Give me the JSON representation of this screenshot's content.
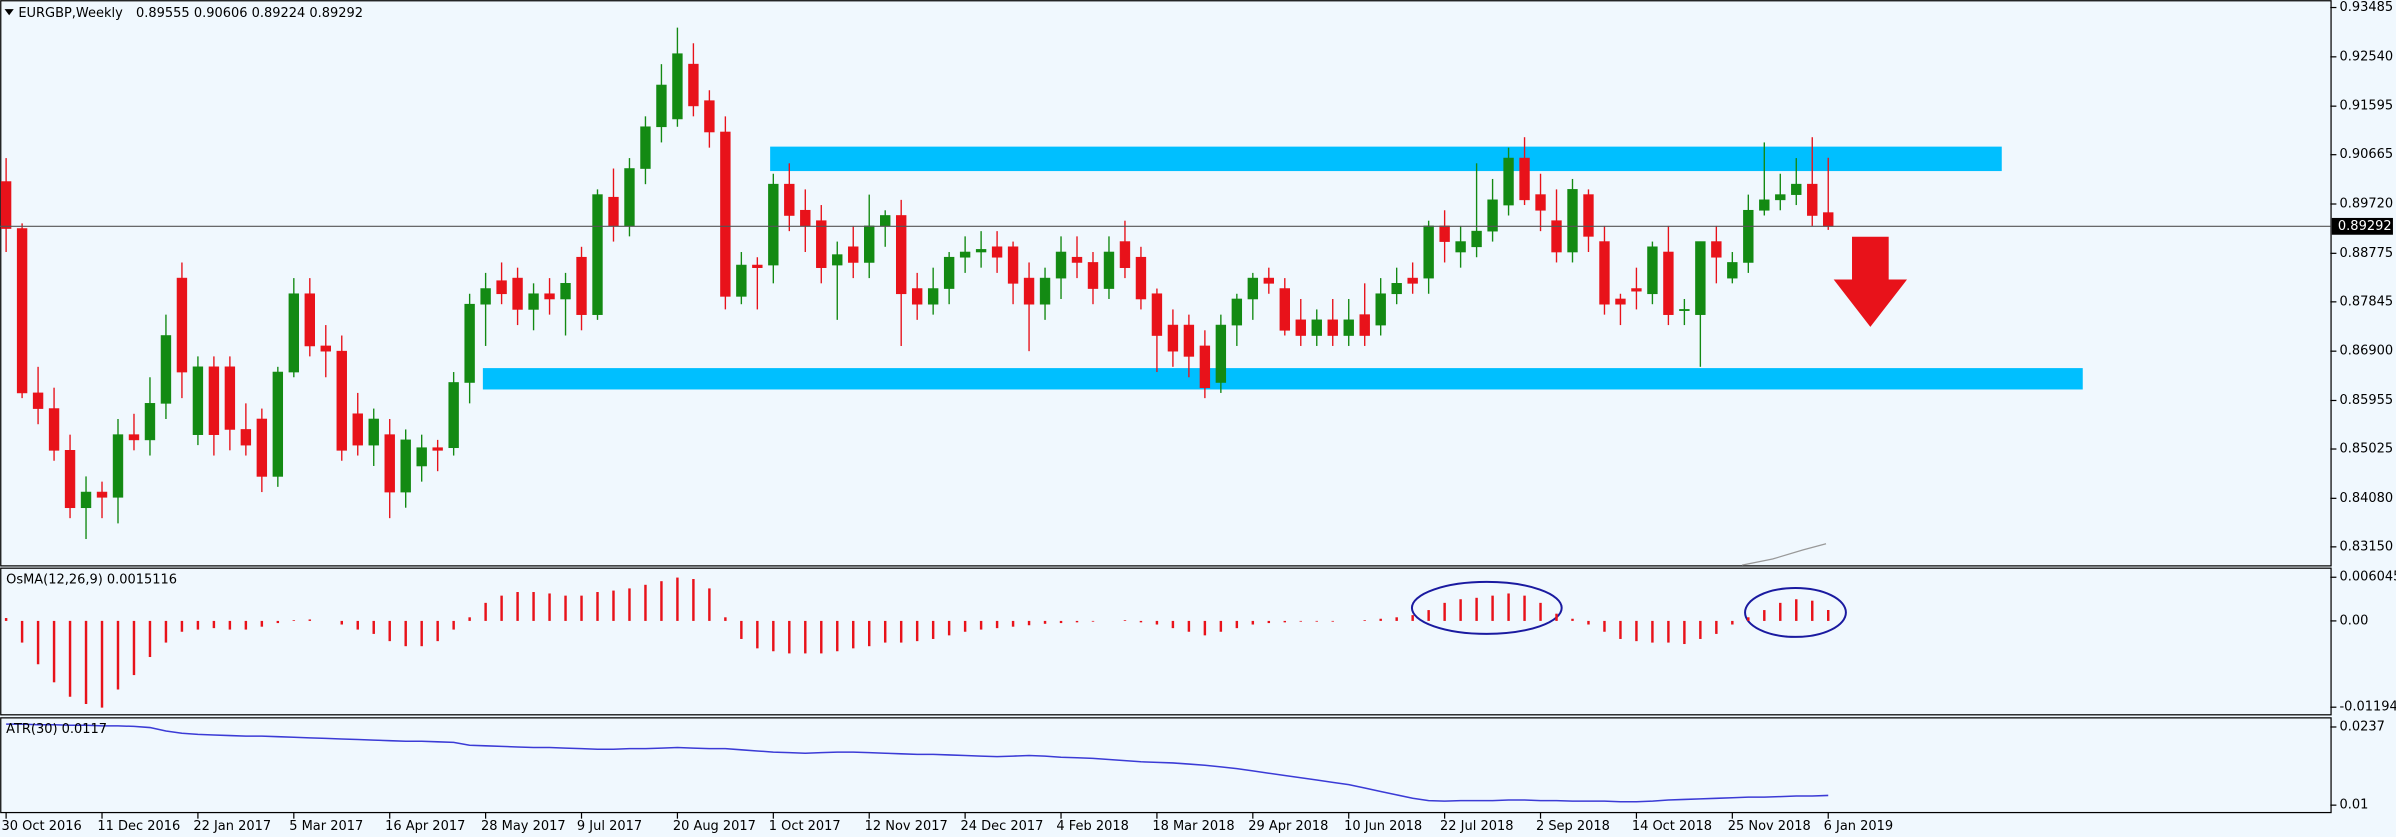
{
  "chart_data": [
    {
      "type": "candlestick",
      "title": "EURGBP,Weekly",
      "x": [
        "30 Oct 2016",
        null,
        null,
        null,
        null,
        null,
        "11 Dec 2016",
        null,
        null,
        null,
        null,
        null,
        "22 Jan 2017",
        null,
        null,
        null,
        null,
        null,
        "5 Mar 2017",
        null,
        null,
        null,
        null,
        null,
        "16 Apr 2017",
        null,
        null,
        null,
        null,
        null,
        "28 May 2017",
        null,
        null,
        null,
        null,
        null,
        "9 Jul 2017",
        null,
        null,
        null,
        null,
        null,
        "20 Aug 2017",
        null,
        null,
        null,
        null,
        null,
        "1 Oct 2017",
        null,
        null,
        null,
        null,
        null,
        "12 Nov 2017",
        null,
        null,
        null,
        null,
        null,
        "24 Dec 2017",
        null,
        null,
        null,
        null,
        null,
        "4 Feb 2018",
        null,
        null,
        null,
        null,
        null,
        "18 Mar 2018",
        null,
        null,
        null,
        null,
        null,
        "29 Apr 2018",
        null,
        null,
        null,
        null,
        null,
        "10 Jun 2018",
        null,
        null,
        null,
        null,
        null,
        "22 Jul 2018",
        null,
        null,
        null,
        null,
        null,
        "2 Sep 2018",
        null,
        null,
        null,
        null,
        null,
        "14 Oct 2018",
        null,
        null,
        null,
        null,
        null,
        "25 Nov 2018",
        null,
        null,
        null,
        null,
        null,
        "6 Jan 2019"
      ],
      "open": [
        0.9015,
        0.8925,
        0.861,
        0.858,
        0.85,
        0.839,
        0.842,
        0.841,
        0.853,
        0.852,
        0.859,
        0.883,
        0.853,
        0.866,
        0.866,
        0.854,
        0.856,
        0.845,
        0.865,
        0.88,
        0.87,
        0.869,
        0.857,
        0.851,
        0.853,
        0.842,
        0.847,
        0.8505,
        0.8505,
        0.863,
        0.878,
        0.8825,
        0.883,
        0.877,
        0.88,
        0.879,
        0.887,
        0.876,
        0.8985,
        0.893,
        0.904,
        0.912,
        0.9135,
        0.924,
        0.917,
        0.911,
        0.8795,
        0.8855,
        0.8855,
        0.901,
        0.896,
        0.894,
        0.8855,
        0.889,
        0.886,
        0.893,
        0.895,
        0.881,
        0.878,
        0.881,
        0.887,
        0.888,
        0.889,
        0.889,
        0.883,
        0.878,
        0.883,
        0.887,
        0.886,
        0.881,
        0.89,
        0.887,
        0.88,
        0.874,
        0.874,
        0.87,
        0.863,
        0.874,
        0.879,
        0.883,
        0.881,
        0.875,
        0.872,
        0.875,
        0.872,
        0.876,
        0.874,
        0.88,
        0.883,
        0.883,
        0.893,
        0.888,
        0.889,
        0.892,
        0.897,
        0.906,
        0.899,
        0.894,
        0.888,
        0.899,
        0.89,
        0.879,
        0.881,
        0.88,
        0.888,
        0.877,
        0.876,
        0.89,
        0.883,
        0.886,
        0.896,
        0.898,
        0.899,
        0.901,
        0.89555
      ],
      "high": [
        0.906,
        0.8935,
        0.866,
        0.862,
        0.853,
        0.845,
        0.844,
        0.856,
        0.857,
        0.864,
        0.876,
        0.886,
        0.868,
        0.868,
        0.868,
        0.859,
        0.858,
        0.866,
        0.883,
        0.883,
        0.874,
        0.872,
        0.861,
        0.858,
        0.856,
        0.854,
        0.853,
        0.852,
        0.865,
        0.88,
        0.884,
        0.886,
        0.885,
        0.882,
        0.883,
        0.884,
        0.889,
        0.9,
        0.904,
        0.906,
        0.914,
        0.924,
        0.931,
        0.928,
        0.919,
        0.914,
        0.888,
        0.887,
        0.903,
        0.905,
        0.9,
        0.897,
        0.89,
        0.893,
        0.899,
        0.896,
        0.898,
        0.884,
        0.885,
        0.888,
        0.891,
        0.892,
        0.892,
        0.89,
        0.886,
        0.885,
        0.891,
        0.891,
        0.888,
        0.891,
        0.894,
        0.889,
        0.881,
        0.877,
        0.876,
        0.873,
        0.876,
        0.88,
        0.884,
        0.885,
        0.883,
        0.879,
        0.877,
        0.879,
        0.879,
        0.882,
        0.883,
        0.885,
        0.886,
        0.894,
        0.896,
        0.893,
        0.905,
        0.902,
        0.908,
        0.91,
        0.903,
        0.9,
        0.902,
        0.9,
        0.893,
        0.88,
        0.885,
        0.89,
        0.893,
        0.879,
        0.89,
        0.893,
        0.888,
        0.899,
        0.909,
        0.903,
        0.906,
        0.91,
        0.90606
      ],
      "low": [
        0.888,
        0.86,
        0.855,
        0.848,
        0.837,
        0.833,
        0.837,
        0.836,
        0.85,
        0.849,
        0.856,
        0.86,
        0.851,
        0.849,
        0.85,
        0.849,
        0.842,
        0.843,
        0.864,
        0.868,
        0.864,
        0.848,
        0.849,
        0.847,
        0.837,
        0.839,
        0.844,
        0.846,
        0.849,
        0.859,
        0.87,
        0.878,
        0.874,
        0.873,
        0.876,
        0.872,
        0.873,
        0.875,
        0.89,
        0.891,
        0.901,
        0.909,
        0.912,
        0.914,
        0.908,
        0.877,
        0.878,
        0.877,
        0.882,
        0.892,
        0.888,
        0.882,
        0.875,
        0.883,
        0.883,
        0.889,
        0.87,
        0.875,
        0.876,
        0.878,
        0.884,
        0.885,
        0.884,
        0.878,
        0.869,
        0.875,
        0.879,
        0.883,
        0.878,
        0.879,
        0.883,
        0.877,
        0.865,
        0.866,
        0.864,
        0.86,
        0.861,
        0.87,
        0.875,
        0.88,
        0.872,
        0.87,
        0.87,
        0.87,
        0.87,
        0.87,
        0.872,
        0.878,
        0.88,
        0.88,
        0.886,
        0.885,
        0.887,
        0.89,
        0.895,
        0.897,
        0.892,
        0.886,
        0.886,
        0.888,
        0.876,
        0.874,
        0.877,
        0.878,
        0.874,
        0.874,
        0.866,
        0.882,
        0.882,
        0.884,
        0.895,
        0.896,
        0.897,
        0.893,
        0.89224
      ],
      "close": [
        0.8925,
        0.861,
        0.858,
        0.85,
        0.839,
        0.842,
        0.841,
        0.853,
        0.852,
        0.859,
        0.872,
        0.865,
        0.866,
        0.853,
        0.854,
        0.851,
        0.845,
        0.865,
        0.88,
        0.87,
        0.869,
        0.85,
        0.851,
        0.856,
        0.842,
        0.852,
        0.8505,
        0.85,
        0.863,
        0.878,
        0.881,
        0.88,
        0.877,
        0.88,
        0.879,
        0.882,
        0.876,
        0.899,
        0.893,
        0.904,
        0.912,
        0.92,
        0.926,
        0.916,
        0.911,
        0.8795,
        0.8855,
        0.885,
        0.901,
        0.895,
        0.893,
        0.885,
        0.8875,
        0.886,
        0.893,
        0.895,
        0.88,
        0.878,
        0.881,
        0.887,
        0.888,
        0.8885,
        0.887,
        0.882,
        0.878,
        0.883,
        0.888,
        0.886,
        0.881,
        0.888,
        0.885,
        0.879,
        0.872,
        0.869,
        0.868,
        0.862,
        0.874,
        0.879,
        0.883,
        0.882,
        0.873,
        0.872,
        0.875,
        0.872,
        0.875,
        0.872,
        0.88,
        0.882,
        0.882,
        0.893,
        0.89,
        0.89,
        0.892,
        0.898,
        0.906,
        0.898,
        0.896,
        0.888,
        0.9,
        0.891,
        0.878,
        0.878,
        0.8805,
        0.889,
        0.876,
        0.877,
        0.89,
        0.887,
        0.886,
        0.896,
        0.898,
        0.899,
        0.901,
        0.895,
        0.89292
      ],
      "up_color": "#138a13",
      "down_color": "#e8121a",
      "price_line": true,
      "ylim": [
        0.828,
        0.936
      ],
      "yticks": [
        0.93485,
        {
          "value": 0.9254,
          "label": "0.92540"
        },
        0.91595,
        0.90665,
        {
          "value": 0.8972,
          "label": "0.89720"
        },
        0.88775,
        0.87845,
        {
          "value": 0.869,
          "label": "0.86900"
        },
        0.85955,
        0.85025,
        {
          "value": 0.8408,
          "label": "0.84080"
        },
        {
          "value": 0.8315,
          "label": "0.83150"
        }
      ]
    },
    {
      "type": "bar",
      "title": "OsMA(12,26,9)",
      "color": "#e8121a",
      "values": [
        0.0004,
        -0.003,
        -0.006,
        -0.0085,
        -0.0105,
        -0.0115,
        -0.012,
        -0.0095,
        -0.0075,
        -0.005,
        -0.003,
        -0.0015,
        -0.0012,
        -0.001,
        -0.0012,
        -0.0012,
        -0.0008,
        -0.0003,
        0.0001,
        0.0002,
        0,
        -0.0005,
        -0.0012,
        -0.0018,
        -0.0028,
        -0.0035,
        -0.0035,
        -0.0028,
        -0.0012,
        0.0005,
        0.0025,
        0.0035,
        0.004,
        0.004,
        0.0038,
        0.0035,
        0.0035,
        0.004,
        0.0042,
        0.0045,
        0.005,
        0.0055,
        0.006,
        0.0058,
        0.0045,
        0.0005,
        -0.0025,
        -0.0038,
        -0.0042,
        -0.0045,
        -0.0045,
        -0.0045,
        -0.0042,
        -0.0038,
        -0.0035,
        -0.003,
        -0.003,
        -0.0028,
        -0.0025,
        -0.002,
        -0.0015,
        -0.0012,
        -0.001,
        -0.0008,
        -0.0006,
        -0.0004,
        -0.0003,
        -0.0002,
        -0.0001,
        0,
        0.0001,
        -0.0002,
        -0.0005,
        -0.001,
        -0.0015,
        -0.002,
        -0.0015,
        -0.001,
        -0.0005,
        -0.0003,
        -0.0002,
        -0.0001,
        -0.0001,
        -0.0001,
        0,
        0.0001,
        0.0003,
        0.0005,
        0.0008,
        0.0015,
        0.0025,
        0.003,
        0.0032,
        0.0035,
        0.0038,
        0.0035,
        0.0025,
        0.001,
        0.0003,
        -0.0005,
        -0.0015,
        -0.0025,
        -0.0028,
        -0.003,
        -0.003,
        -0.0032,
        -0.0025,
        -0.0018,
        -0.0005,
        0.0005,
        0.0015,
        0.0025,
        0.003,
        0.0028,
        0.0015116
      ],
      "ylim": [
        -0.013,
        0.0073
      ],
      "yticks": [
        0.0060455,
        {
          "value": 0,
          "label": "0.00"
        },
        -0.0119457
      ]
    },
    {
      "type": "line",
      "title": "ATR(30)",
      "color": "#3b3bd6",
      "values": [
        0.0242,
        0.0242,
        0.0241,
        0.0241,
        0.024,
        0.024,
        0.0239,
        0.0239,
        0.0238,
        0.0236,
        0.023,
        0.0226,
        0.0224,
        0.0223,
        0.0222,
        0.0221,
        0.0221,
        0.022,
        0.0219,
        0.0218,
        0.0217,
        0.0216,
        0.0215,
        0.0214,
        0.0213,
        0.0212,
        0.0212,
        0.0211,
        0.021,
        0.0205,
        0.0204,
        0.0203,
        0.0202,
        0.0201,
        0.0201,
        0.02,
        0.0199,
        0.0198,
        0.0198,
        0.0199,
        0.0199,
        0.02,
        0.0201,
        0.02,
        0.0199,
        0.0199,
        0.0197,
        0.0195,
        0.0193,
        0.0192,
        0.0191,
        0.0192,
        0.0193,
        0.0193,
        0.0192,
        0.0191,
        0.019,
        0.0189,
        0.0189,
        0.0188,
        0.0187,
        0.0186,
        0.0185,
        0.0186,
        0.0187,
        0.0186,
        0.0184,
        0.0183,
        0.0182,
        0.018,
        0.0178,
        0.0176,
        0.0175,
        0.0174,
        0.0172,
        0.017,
        0.0167,
        0.0164,
        0.016,
        0.0156,
        0.0152,
        0.0148,
        0.0144,
        0.014,
        0.0136,
        0.013,
        0.0124,
        0.0118,
        0.0112,
        0.0108,
        0.0107,
        0.0108,
        0.0108,
        0.0108,
        0.0109,
        0.0109,
        0.0108,
        0.0108,
        0.0107,
        0.0107,
        0.0107,
        0.0106,
        0.0106,
        0.0107,
        0.0109,
        0.011,
        0.0111,
        0.0112,
        0.0113,
        0.0114,
        0.0114,
        0.0115,
        0.0116,
        0.0116,
        0.0117
      ],
      "ylim": [
        0.0087,
        0.0253
      ],
      "yticks": [
        0.0237,
        0.01
      ]
    }
  ]
}
